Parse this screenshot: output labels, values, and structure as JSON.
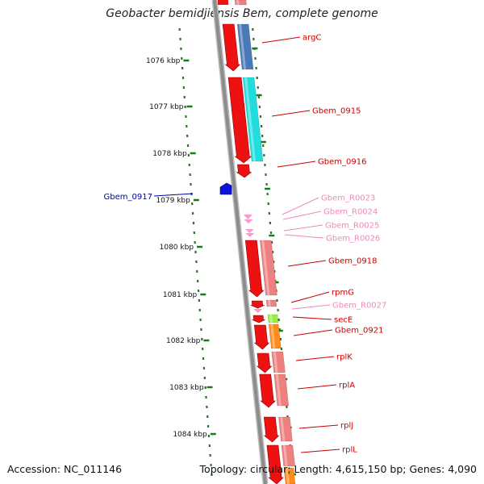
{
  "title": "Geobacter bemidjiensis Bem, complete genome",
  "footer": {
    "accession_label": "Accession:",
    "accession": "NC_011146",
    "topology_label": "Topology:",
    "topology": "circular",
    "length_label": "Length:",
    "length": "4,615,150 bp",
    "genes_label": "Genes:",
    "genes": "4,090"
  },
  "colors": {
    "backbone": "#8c8c8c",
    "tick": "#1a7a1a",
    "gene_red": "#ee1111",
    "gene_pink": "#ff99cc",
    "gene_blue": "#1111dd",
    "cds_steelblue": "#4a7ab5",
    "cds_cyan": "#22dddd",
    "cds_salmon": "#ee8080",
    "cds_lightgreen": "#99ee44",
    "cds_orange": "#ff8c1a",
    "label_red": "#cc0000",
    "label_pink": "#ee88bb",
    "label_blue": "#000099"
  },
  "kbp_ticks": [
    "1076 kbp",
    "1077 kbp",
    "1078 kbp",
    "1079 kbp",
    "1080 kbp",
    "1081 kbp",
    "1082 kbp",
    "1083 kbp",
    "1084 kbp"
  ],
  "genes": [
    {
      "name": "argC",
      "type": "red"
    },
    {
      "name": "Gbem_0915",
      "type": "red"
    },
    {
      "name": "Gbem_0916",
      "type": "red"
    },
    {
      "name": "Gbem_0917",
      "type": "blue"
    },
    {
      "name": "Gbem_R0023",
      "type": "pink"
    },
    {
      "name": "Gbem_R0024",
      "type": "pink"
    },
    {
      "name": "Gbem_R0025",
      "type": "pink"
    },
    {
      "name": "Gbem_R0026",
      "type": "pink"
    },
    {
      "name": "Gbem_0918",
      "type": "red"
    },
    {
      "name": "rpmG",
      "type": "red"
    },
    {
      "name": "Gbem_R0027",
      "type": "pink"
    },
    {
      "name": "secE",
      "type": "red"
    },
    {
      "name": "Gbem_0921",
      "type": "red"
    },
    {
      "name": "rplK",
      "type": "red"
    },
    {
      "name": "rplA",
      "type": "red"
    },
    {
      "name": "rplJ",
      "type": "red"
    },
    {
      "name": "rplL",
      "type": "red"
    }
  ]
}
